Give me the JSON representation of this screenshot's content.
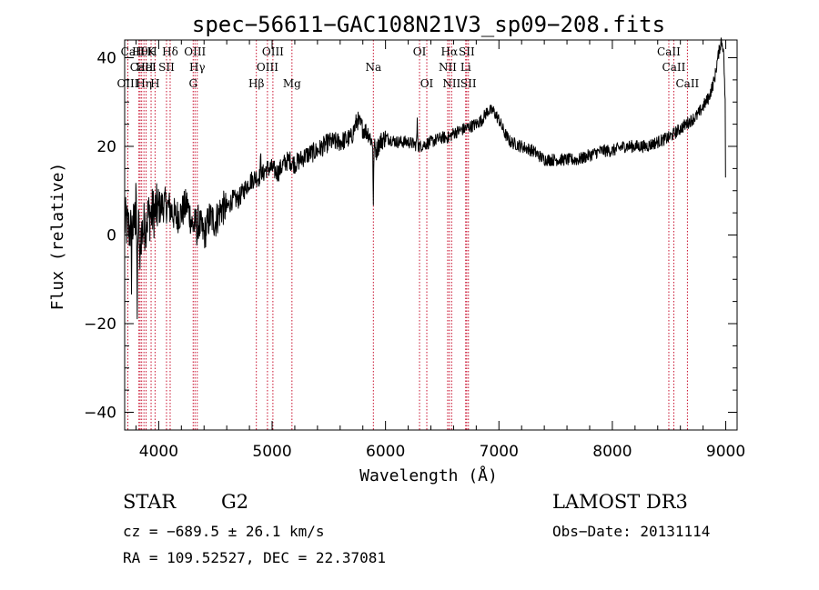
{
  "chart_data": {
    "type": "line",
    "title": "spec−56611−GAC108N21V3_sp09−208.fits",
    "xlabel": "Wavelength (Å)",
    "ylabel": "Flux (relative)",
    "xlim": [
      3700,
      9100
    ],
    "ylim": [
      -44,
      44
    ],
    "x_ticks": [
      {
        "value": 4000,
        "label": "4000"
      },
      {
        "value": 5000,
        "label": "5000"
      },
      {
        "value": 6000,
        "label": "6000"
      },
      {
        "value": 7000,
        "label": "7000"
      },
      {
        "value": 8000,
        "label": "8000"
      },
      {
        "value": 9000,
        "label": "9000"
      }
    ],
    "y_ticks": [
      {
        "value": 40,
        "label": "40"
      },
      {
        "value": 20,
        "label": "20"
      },
      {
        "value": 0,
        "label": "0"
      },
      {
        "value": -20,
        "label": "−20"
      },
      {
        "value": -40,
        "label": "−40"
      }
    ],
    "spectrum_anchors": [
      [
        3700,
        3
      ],
      [
        3720,
        2
      ],
      [
        3750,
        1
      ],
      [
        3780,
        2
      ],
      [
        3800,
        5
      ],
      [
        3830,
        0
      ],
      [
        3860,
        1
      ],
      [
        3900,
        4
      ],
      [
        3950,
        5
      ],
      [
        4000,
        6
      ],
      [
        4050,
        7
      ],
      [
        4100,
        6
      ],
      [
        4150,
        4
      ],
      [
        4200,
        5
      ],
      [
        4250,
        7
      ],
      [
        4300,
        2
      ],
      [
        4350,
        3
      ],
      [
        4400,
        0
      ],
      [
        4450,
        4
      ],
      [
        4500,
        3
      ],
      [
        4550,
        6
      ],
      [
        4600,
        6
      ],
      [
        4650,
        8
      ],
      [
        4700,
        8
      ],
      [
        4750,
        10
      ],
      [
        4800,
        12
      ],
      [
        4850,
        13
      ],
      [
        4900,
        13
      ],
      [
        4950,
        15
      ],
      [
        5000,
        15
      ],
      [
        5050,
        14
      ],
      [
        5100,
        16
      ],
      [
        5150,
        17
      ],
      [
        5200,
        16
      ],
      [
        5300,
        18
      ],
      [
        5400,
        19
      ],
      [
        5500,
        21
      ],
      [
        5600,
        21
      ],
      [
        5700,
        22
      ],
      [
        5750,
        26
      ],
      [
        5800,
        24
      ],
      [
        5850,
        23
      ],
      [
        5880,
        21
      ],
      [
        5920,
        19
      ],
      [
        5950,
        21
      ],
      [
        6000,
        22
      ],
      [
        6100,
        21
      ],
      [
        6200,
        21
      ],
      [
        6300,
        20
      ],
      [
        6400,
        21
      ],
      [
        6500,
        22
      ],
      [
        6560,
        22
      ],
      [
        6600,
        23
      ],
      [
        6700,
        24
      ],
      [
        6800,
        25
      ],
      [
        6850,
        26
      ],
      [
        6900,
        28
      ],
      [
        6950,
        28
      ],
      [
        7000,
        26
      ],
      [
        7050,
        23
      ],
      [
        7100,
        21
      ],
      [
        7200,
        20
      ],
      [
        7300,
        19
      ],
      [
        7400,
        17
      ],
      [
        7500,
        17
      ],
      [
        7600,
        17
      ],
      [
        7700,
        17
      ],
      [
        7800,
        18
      ],
      [
        7900,
        19
      ],
      [
        8000,
        19
      ],
      [
        8100,
        20
      ],
      [
        8200,
        20
      ],
      [
        8300,
        20
      ],
      [
        8400,
        21
      ],
      [
        8500,
        22
      ],
      [
        8600,
        24
      ],
      [
        8700,
        26
      ],
      [
        8750,
        27
      ],
      [
        8800,
        29
      ],
      [
        8850,
        31
      ],
      [
        8900,
        35
      ],
      [
        8930,
        40
      ],
      [
        8960,
        44
      ],
      [
        8980,
        42
      ],
      [
        8995,
        30
      ],
      [
        9000,
        0
      ]
    ],
    "spectrum_features": [
      {
        "x": 3810,
        "width": 6,
        "depth": 26
      },
      {
        "x": 3835,
        "width": 5,
        "depth": 12
      },
      {
        "x": 3800,
        "width": 4,
        "depth": -12
      },
      {
        "x": 3760,
        "width": 4,
        "depth": 10
      },
      {
        "x": 5893,
        "width": 6,
        "depth": 14
      },
      {
        "x": 4340,
        "width": 6,
        "depth": 4
      },
      {
        "x": 6280,
        "width": 8,
        "depth": -5
      },
      {
        "x": 4900,
        "width": 10,
        "depth": -4
      }
    ],
    "spectral_lines": [
      {
        "name": "CaII H",
        "x": 3826,
        "tier": 0,
        "color": "#c8102e"
      },
      {
        "name": "Hθ",
        "x": 3836,
        "tier": 0,
        "color": "#c8102e"
      },
      {
        "name": "K",
        "x": 3933,
        "tier": 0,
        "color": "#c8102e"
      },
      {
        "name": "Hδ",
        "x": 4101,
        "tier": 0,
        "color": "#c8102e"
      },
      {
        "name": "OIII",
        "x": 4320,
        "tier": 0,
        "color": "#c8102e"
      },
      {
        "name": "OIII",
        "x": 5007,
        "tier": 0,
        "color": "#c8102e"
      },
      {
        "name": "OI",
        "x": 6300,
        "tier": 0,
        "color": "#c8102e"
      },
      {
        "name": "Hα",
        "x": 6563,
        "tier": 0,
        "color": "#c8102e"
      },
      {
        "name": "SII",
        "x": 6716,
        "tier": 0,
        "color": "#c8102e"
      },
      {
        "name": "CaII",
        "x": 8498,
        "tier": 0,
        "color": "#c8102e"
      },
      {
        "name": "CaII",
        "x": 3850,
        "tier": 1,
        "color": "#c8102e"
      },
      {
        "name": "HeI",
        "x": 3889,
        "tier": 1,
        "color": "#c8102e"
      },
      {
        "name": "SII",
        "x": 4069,
        "tier": 1,
        "color": "#c8102e"
      },
      {
        "name": "Hγ",
        "x": 4340,
        "tier": 1,
        "color": "#c8102e"
      },
      {
        "name": "OIII",
        "x": 4959,
        "tier": 1,
        "color": "#c8102e"
      },
      {
        "name": "Na",
        "x": 5893,
        "tier": 1,
        "color": "#c8102e"
      },
      {
        "name": "NII",
        "x": 6548,
        "tier": 1,
        "color": "#c8102e"
      },
      {
        "name": "Li",
        "x": 6707,
        "tier": 1,
        "color": "#c8102e"
      },
      {
        "name": "CaII",
        "x": 8542,
        "tier": 1,
        "color": "#c8102e"
      },
      {
        "name": "OIII",
        "x": 3728,
        "tier": 2,
        "color": "#c8102e"
      },
      {
        "name": "Hη",
        "x": 3870,
        "tier": 2,
        "color": "#c8102e"
      },
      {
        "name": "H",
        "x": 3968,
        "tier": 2,
        "color": "#c8102e"
      },
      {
        "name": "G",
        "x": 4304,
        "tier": 2,
        "color": "#c8102e"
      },
      {
        "name": "Hβ",
        "x": 4861,
        "tier": 2,
        "color": "#c8102e"
      },
      {
        "name": "Mg",
        "x": 5175,
        "tier": 2,
        "color": "#c8102e"
      },
      {
        "name": "OI",
        "x": 6364,
        "tier": 2,
        "color": "#c8102e"
      },
      {
        "name": "NII",
        "x": 6583,
        "tier": 2,
        "color": "#c8102e"
      },
      {
        "name": "SII",
        "x": 6731,
        "tier": 2,
        "color": "#c8102e"
      },
      {
        "name": "CaII",
        "x": 8662,
        "tier": 2,
        "color": "#c8102e"
      }
    ]
  },
  "info": {
    "class": "STAR",
    "subclass": "G2",
    "survey": "LAMOST DR3",
    "cz": "cz = −689.5 ± 26.1 km/s",
    "obs_date": "Obs−Date: 20131114",
    "coords": "RA = 109.52527, DEC =  22.37081"
  },
  "colors": {
    "spectrum": "#000000",
    "line_marker": "#c8102e",
    "axis": "#000000",
    "background": "#ffffff"
  }
}
